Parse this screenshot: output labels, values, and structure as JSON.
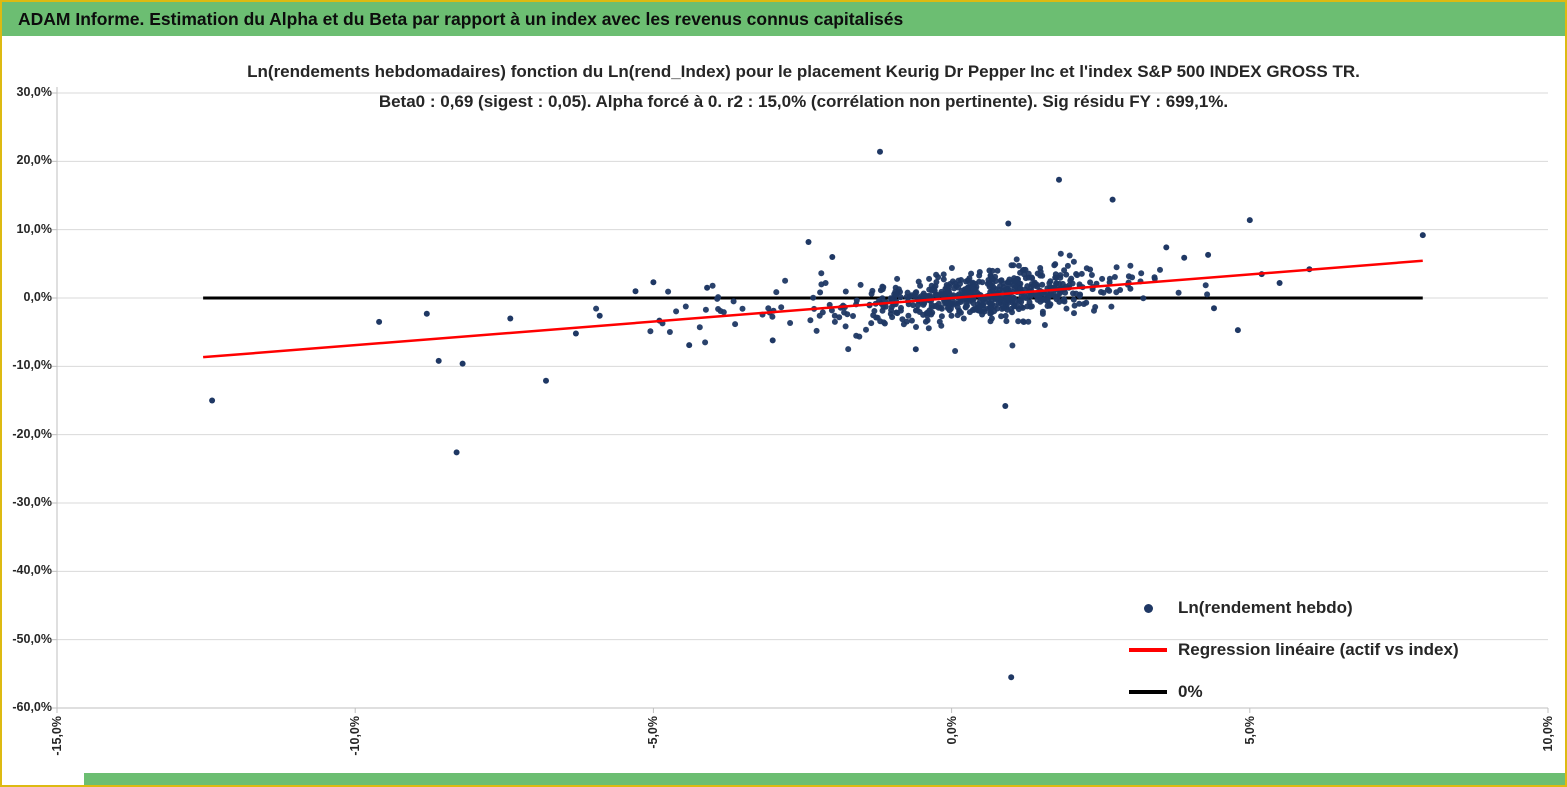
{
  "header": {
    "title": "ADAM Informe. Estimation du Alpha et du Beta par rapport à un index avec les revenus connus capitalisés"
  },
  "colors": {
    "header_bg": "#6CBE72",
    "frame_border": "#DDBA12",
    "gridline": "#D9D9D9",
    "axis_line": "#BFBFBF",
    "point": "#1F3864",
    "regression_line": "#FF0000",
    "zero_line": "#000000"
  },
  "chart_data": {
    "type": "scatter",
    "title": "Ln(rendements hebdomadaires) fonction du Ln(rend_Index) pour le placement Keurig Dr Pepper Inc et l'index S&P 500 INDEX GROSS TR.",
    "subtitle": "Beta0 : 0,69 (sigest : 0,05). Alpha forcé à 0. r2 : 15,0% (corrélation non pertinente). Sig résidu FY : 699,1%.",
    "stats": {
      "beta0": "0,69",
      "sigest": "0,05",
      "alpha": "forcé à 0",
      "r2": "15,0%",
      "correlation_note": "corrélation non pertinente",
      "sig_residu_fy": "699,1%"
    },
    "x_axis": {
      "min": -15,
      "max": 10,
      "tick_values": [
        -15,
        -10,
        -5,
        0,
        5,
        10
      ],
      "tick_labels": [
        "-15,0%",
        "-10,0%",
        "-5,0%",
        "0,0%",
        "5,0%",
        "10,0%"
      ],
      "unit": "percent"
    },
    "y_axis": {
      "min": -60,
      "max": 30,
      "tick_values": [
        30,
        20,
        10,
        0,
        -10,
        -20,
        -30,
        -40,
        -50,
        -60
      ],
      "tick_labels": [
        "30,0%",
        "20,0%",
        "10,0%",
        "0,0%",
        "-10,0%",
        "-20,0%",
        "-30,0%",
        "-40,0%",
        "-50,0%",
        "-60,0%"
      ],
      "unit": "percent"
    },
    "grid": "horizontal-only",
    "regression": {
      "beta": 0.69,
      "alpha": 0,
      "x_start": -12.55,
      "x_end": 7.9,
      "color": "#FF0000",
      "width": 2.5
    },
    "zero_line": {
      "y": 0,
      "x_start": -12.55,
      "x_end": 7.9,
      "color": "#000000",
      "width": 3
    },
    "points": {
      "color": "#1F3864",
      "radius": 3,
      "seed": 1234,
      "approx_total": 670,
      "clusters": [
        {
          "n": 520,
          "x_mean": 0.6,
          "x_sd": 1.1,
          "x_min": -3.5,
          "x_max": 4.0,
          "y_sd": 1.6
        },
        {
          "n": 90,
          "x_mean": 0.0,
          "x_sd": 2.0,
          "x_min": -6.5,
          "x_max": 5.5,
          "y_sd": 2.6
        },
        {
          "n": 25,
          "x_mean": -3.5,
          "x_sd": 1.2,
          "x_min": -6.5,
          "x_max": -1.0,
          "y_sd": 2.2
        }
      ],
      "outliers": [
        [
          -12.4,
          -15.0
        ],
        [
          -9.6,
          -3.5
        ],
        [
          -8.8,
          -2.3
        ],
        [
          -8.6,
          -9.2
        ],
        [
          -8.2,
          -9.6
        ],
        [
          -8.3,
          -22.6
        ],
        [
          -7.4,
          -3.0
        ],
        [
          -6.8,
          -12.1
        ],
        [
          -6.3,
          -5.2
        ],
        [
          -5.9,
          -2.6
        ],
        [
          -5.3,
          1.0
        ],
        [
          -5.0,
          2.3
        ],
        [
          -4.9,
          -3.3
        ],
        [
          -4.4,
          -6.9
        ],
        [
          -4.1,
          1.5
        ],
        [
          -3.0,
          -6.2
        ],
        [
          -2.4,
          8.2
        ],
        [
          -2.0,
          6.0
        ],
        [
          -1.2,
          21.4
        ],
        [
          -0.6,
          -7.5
        ],
        [
          0.9,
          -15.8
        ],
        [
          1.0,
          -55.5
        ],
        [
          0.95,
          10.9
        ],
        [
          1.8,
          17.3
        ],
        [
          2.7,
          14.4
        ],
        [
          3.6,
          7.4
        ],
        [
          3.9,
          5.9
        ],
        [
          4.3,
          6.3
        ],
        [
          4.4,
          -1.5
        ],
        [
          4.8,
          -4.7
        ],
        [
          5.0,
          11.4
        ],
        [
          5.2,
          3.5
        ],
        [
          5.5,
          2.2
        ],
        [
          6.0,
          4.2
        ],
        [
          7.9,
          9.2
        ]
      ]
    },
    "legend": {
      "position": "inside-bottom-right",
      "items": [
        {
          "label": "Ln(rendement hebdo)",
          "marker": "dot",
          "color": "#1F3864"
        },
        {
          "label": "Regression linéaire (actif vs index)",
          "marker": "line",
          "color": "#FF0000"
        },
        {
          "label": "0%",
          "marker": "line",
          "color": "#000000"
        }
      ]
    }
  }
}
